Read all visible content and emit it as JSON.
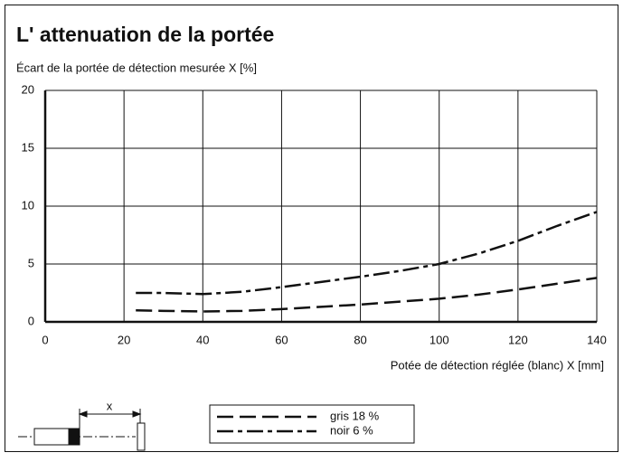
{
  "chart_data": {
    "type": "line",
    "title": "L' attenuation de la portée",
    "y_label": "Écart de la portée de détection mesurée X [%]",
    "x_label": "Potée de détection réglée (blanc) X [mm]",
    "annotation": "x",
    "xlim": [
      0,
      140
    ],
    "xticks": [
      0,
      20,
      40,
      60,
      80,
      100,
      120,
      140
    ],
    "ylim": [
      0,
      20
    ],
    "yticks": [
      0,
      5,
      10,
      15,
      20
    ],
    "grid": true,
    "series": [
      {
        "name": "gris 18 %",
        "color": "#111111",
        "style": "dashed",
        "x": [
          23,
          30,
          40,
          50,
          60,
          70,
          80,
          90,
          100,
          110,
          120,
          130,
          140
        ],
        "values": [
          1.0,
          0.95,
          0.9,
          0.95,
          1.1,
          1.3,
          1.5,
          1.75,
          2.0,
          2.35,
          2.8,
          3.3,
          3.8
        ]
      },
      {
        "name": "noir 6 %",
        "color": "#111111",
        "style": "dashdot",
        "x": [
          23,
          30,
          40,
          50,
          60,
          70,
          80,
          90,
          100,
          110,
          120,
          130,
          140
        ],
        "values": [
          2.5,
          2.5,
          2.4,
          2.6,
          3.0,
          3.45,
          3.9,
          4.4,
          5.0,
          5.9,
          7.0,
          8.3,
          9.5
        ]
      }
    ]
  }
}
